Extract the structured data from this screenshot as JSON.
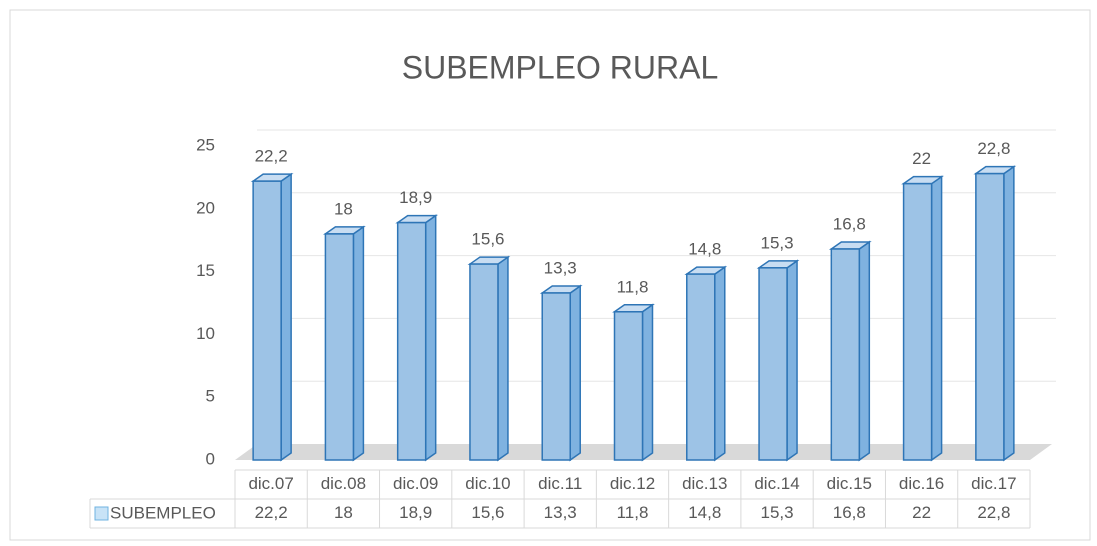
{
  "chart_data": {
    "type": "bar3d",
    "title": "SUBEMPLEO RURAL",
    "categories": [
      "dic.07",
      "dic.08",
      "dic.09",
      "dic.10",
      "dic.11",
      "dic.12",
      "dic.13",
      "dic.14",
      "dic.15",
      "dic.16",
      "dic.17"
    ],
    "series": [
      {
        "name": "SUBEMPLEO",
        "color": "#9dc3e6",
        "values": [
          22.2,
          18,
          18.9,
          15.6,
          13.3,
          11.8,
          14.8,
          15.3,
          16.8,
          22,
          22.8
        ],
        "value_labels": [
          "22,2",
          "18",
          "18,9",
          "15,6",
          "13,3",
          "11,8",
          "14,8",
          "15,3",
          "16,8",
          "22",
          "22,8"
        ]
      }
    ],
    "ylim": [
      0,
      25
    ],
    "yticks": [
      0,
      5,
      10,
      15,
      20,
      25
    ],
    "grid": true
  }
}
